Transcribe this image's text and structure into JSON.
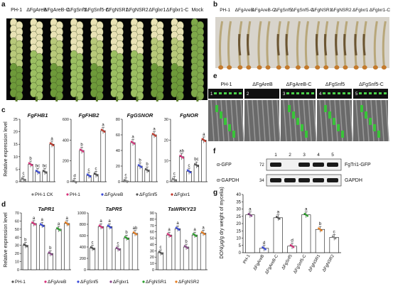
{
  "panel_letters": [
    "a",
    "b",
    "c",
    "d",
    "e",
    "f",
    "g"
  ],
  "a": {
    "labels": [
      "PH-1",
      "ΔFgAreB",
      "ΔFgAreB-C",
      "ΔFgSnf5",
      "ΔFgSnf5-C",
      "ΔFgNSR1",
      "ΔFgNSR2",
      "ΔFglxr1",
      "ΔFglxr1-C",
      "Mock"
    ]
  },
  "b": {
    "labels": [
      "PH-1",
      "ΔFgAreB",
      "ΔFgAreB-C",
      "ΔFgSnf5",
      "ΔFgSnf5-C",
      "ΔFgNSR1",
      "ΔFgNSR2",
      "ΔFglxr1",
      "ΔFglxr1-C"
    ]
  },
  "e": {
    "labels": [
      "PH-1",
      "ΔFgAreB",
      "ΔFgAreB-C",
      "ΔFgSnf5",
      "ΔFgSnf5-C"
    ],
    "nums": [
      "1",
      "2",
      "3",
      "4",
      "5"
    ]
  },
  "f": {
    "lanes": [
      "1",
      "2",
      "3",
      "4",
      "5"
    ],
    "rows": [
      {
        "label": "α-GFP",
        "mw": "72",
        "right": "FgTri1-GFP"
      },
      {
        "label": "α-GAPDH",
        "mw": "34",
        "right": "GAPDH"
      }
    ]
  },
  "c": {
    "ylabel": "Relative expression level",
    "legend": [
      "PH-1 CK",
      "PH-1",
      "ΔFgAreB",
      "ΔFgSnf5",
      "ΔFglxr1"
    ],
    "legend_colors": [
      "#7f7f7f",
      "#d6327a",
      "#3b4bd8",
      "#555555",
      "#c0392b"
    ]
  },
  "d": {
    "ylabel": "Relative expression level",
    "legend": [
      "PH-1",
      "ΔFgAreB",
      "ΔFgSnf5",
      "ΔFglxr1",
      "ΔFgNSR1",
      "ΔFgNSR2"
    ],
    "legend_colors": [
      "#555555",
      "#d6327a",
      "#3b4bd8",
      "#8a4a8a",
      "#2ca02c",
      "#e67e22"
    ]
  },
  "chart_data": [
    {
      "type": "bar",
      "panel": "c",
      "title": "FgFHB1",
      "categories": [
        "PH-1 CK",
        "PH-1",
        "ΔFgAreB",
        "ΔFgSnf5",
        "ΔFglxr1"
      ],
      "values": [
        1,
        7,
        4,
        4,
        15
      ],
      "letters": [
        "c",
        "b",
        "bc",
        "bc",
        "a"
      ],
      "yticks": [
        0,
        5,
        10,
        15,
        20,
        25
      ],
      "ylim": [
        0,
        25
      ]
    },
    {
      "type": "bar",
      "panel": "c",
      "title": "FgFHB2",
      "categories": [
        "PH-1 CK",
        "PH-1",
        "ΔFgAreB",
        "ΔFgSnf5",
        "ΔFglxr1"
      ],
      "values": [
        1,
        300,
        60,
        70,
        490
      ],
      "letters": [
        "d",
        "b",
        "c",
        "c",
        "a"
      ],
      "yticks": [
        0,
        200,
        400,
        600
      ],
      "ylim": [
        0,
        600
      ]
    },
    {
      "type": "bar",
      "panel": "c",
      "title": "FgGSNOR",
      "categories": [
        "PH-1 CK",
        "PH-1",
        "ΔFgAreB",
        "ΔFgSnf5",
        "ΔFglxr1"
      ],
      "values": [
        1,
        50,
        20,
        15,
        60
      ],
      "letters": [
        "c",
        "a",
        "b",
        "b",
        "a"
      ],
      "yticks": [
        0,
        20,
        40,
        60,
        80
      ],
      "ylim": [
        0,
        80
      ]
    },
    {
      "type": "bar",
      "panel": "c",
      "title": "FgNOR",
      "categories": [
        "PH-1 CK",
        "PH-1",
        "ΔFgAreB",
        "ΔFgSnf5",
        "ΔFglxr1"
      ],
      "values": [
        1,
        12,
        5,
        8,
        20
      ],
      "letters": [
        "c",
        "ab",
        "c",
        "bc",
        "a"
      ],
      "yticks": [
        0,
        10,
        20,
        30
      ],
      "ylim": [
        0,
        30
      ]
    },
    {
      "type": "bar",
      "panel": "d",
      "title": "TaPR1",
      "categories": [
        "PH-1",
        "ΔFgAreB",
        "ΔFgSnf5",
        "ΔFglxr1",
        "ΔFgNSR1",
        "ΔFgNSR2"
      ],
      "values": [
        30,
        57,
        55,
        20,
        50,
        57
      ],
      "letters": [
        "b",
        "a",
        "a",
        "b",
        "a",
        "a"
      ],
      "yticks": [
        0,
        10,
        20,
        30,
        40,
        50,
        60,
        70
      ],
      "ylim": [
        0,
        70
      ]
    },
    {
      "type": "bar",
      "panel": "d",
      "title": "TaPR5",
      "categories": [
        "PH-1",
        "ΔFgAreB",
        "ΔFgSnf5",
        "ΔFglxr1",
        "ΔFgNSR1",
        "ΔFgNSR2"
      ],
      "values": [
        380,
        760,
        760,
        370,
        560,
        640
      ],
      "letters": [
        "c",
        "a",
        "a",
        "c",
        "b",
        "ab"
      ],
      "yticks": [
        0,
        100,
        200,
        300,
        400,
        500,
        600,
        700,
        800,
        900,
        1000
      ],
      "ylim": [
        0,
        1000
      ]
    },
    {
      "type": "bar",
      "panel": "d",
      "title": "TaWRKY23",
      "categories": [
        "PH-1",
        "ΔFgAreB",
        "ΔFgSnf5",
        "ΔFglxr1",
        "ΔFgNSR1",
        "ΔFgNSR2"
      ],
      "values": [
        27,
        55,
        65,
        36,
        55,
        58
      ],
      "letters": [
        "c",
        "a",
        "a",
        "b",
        "a",
        "a"
      ],
      "yticks": [
        0,
        10,
        20,
        30,
        40,
        50,
        60,
        70,
        80,
        90
      ],
      "ylim": [
        0,
        90
      ]
    },
    {
      "type": "bar",
      "panel": "g",
      "ylabel": "DON(μg/g dry weight of mycelia)",
      "categories": [
        "PH-1",
        "ΔFgAreB",
        "ΔFgAreB-C",
        "ΔFgSnf5",
        "ΔFgSnf5-C",
        "ΔFgNSR1",
        "ΔFgNSR2"
      ],
      "values": [
        26,
        3,
        24,
        4.5,
        26,
        16,
        10.5
      ],
      "letters": [
        "a",
        "d",
        "a",
        "d",
        "a",
        "b",
        "c"
      ],
      "colors": [
        "#8a4a8a",
        "#3b4bd8",
        "#555555",
        "#d6327a",
        "#2ca02c",
        "#e67e22",
        "#888888"
      ],
      "yticks": [
        0,
        5,
        10,
        15,
        20,
        25,
        30,
        35,
        40
      ],
      "ylim": [
        0,
        40
      ]
    }
  ]
}
